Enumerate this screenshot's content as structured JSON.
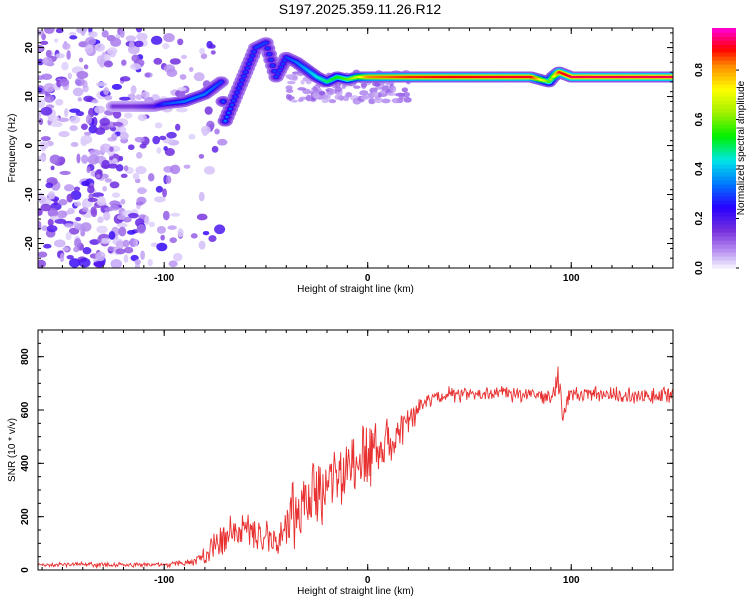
{
  "title": "S197.2025.359.11.26.R12",
  "chart_data": [
    {
      "type": "heatmap",
      "xlabel": "Height of straight line (km)",
      "ylabel": "Frequency (Hz)",
      "xlim": [
        -162,
        150
      ],
      "ylim": [
        -25,
        24
      ],
      "x_ticks": [
        -100,
        0,
        100
      ],
      "y_ticks": [
        20,
        10,
        0,
        -10,
        -20
      ],
      "colorbar": {
        "label": "Normalized spectral amplitude",
        "range": [
          0,
          0.97
        ],
        "ticks": [
          0.0,
          0.2,
          0.4,
          0.6,
          0.8
        ]
      },
      "dominant_frequency_track": {
        "x": [
          -125,
          -115,
          -105,
          -100,
          -90,
          -80,
          -72,
          -70,
          -65,
          -60,
          -55,
          -50,
          -45,
          -40,
          -35,
          -30,
          -25,
          -20,
          -15,
          -10,
          -5,
          0,
          20,
          40,
          60,
          80,
          89,
          91,
          94,
          100,
          120,
          150
        ],
        "y": [
          8,
          8,
          8,
          8.5,
          9,
          10.5,
          13,
          5,
          10,
          15,
          20,
          21,
          14,
          18,
          17,
          15.5,
          14,
          13,
          14,
          13.5,
          14,
          14,
          14,
          14,
          14,
          14,
          13,
          14,
          15,
          14,
          14,
          14
        ],
        "amplitude": [
          0.15,
          0.15,
          0.2,
          0.3,
          0.35,
          0.35,
          0.3,
          0.35,
          0.3,
          0.3,
          0.3,
          0.3,
          0.3,
          0.3,
          0.35,
          0.4,
          0.45,
          0.5,
          0.55,
          0.6,
          0.7,
          0.85,
          0.9,
          0.92,
          0.93,
          0.93,
          0.6,
          0.7,
          0.9,
          0.95,
          0.95,
          0.95
        ]
      }
    },
    {
      "type": "line",
      "xlabel": "Height of straight line (km)",
      "ylabel": "SNR (10 * v/v)",
      "xlim": [
        -162,
        150
      ],
      "ylim": [
        0,
        900
      ],
      "x_ticks": [
        -100,
        0,
        100
      ],
      "y_ticks": [
        0,
        200,
        400,
        600,
        800
      ],
      "series": [
        {
          "color": "#e83030",
          "x": [
            -162,
            -150,
            -140,
            -130,
            -120,
            -110,
            -100,
            -90,
            -85,
            -80,
            -75,
            -70,
            -65,
            -60,
            -55,
            -50,
            -45,
            -40,
            -35,
            -30,
            -25,
            -20,
            -15,
            -10,
            -5,
            0,
            5,
            10,
            15,
            20,
            25,
            30,
            40,
            50,
            60,
            70,
            80,
            90,
            94,
            96,
            98,
            100,
            110,
            120,
            130,
            140,
            150
          ],
          "y": [
            20,
            20,
            20,
            20,
            20,
            20,
            20,
            25,
            35,
            60,
            90,
            120,
            150,
            140,
            130,
            120,
            140,
            170,
            220,
            260,
            290,
            310,
            350,
            380,
            390,
            420,
            440,
            470,
            510,
            560,
            600,
            640,
            660,
            660,
            660,
            660,
            660,
            650,
            700,
            560,
            640,
            660,
            655,
            660,
            650,
            655,
            660
          ],
          "envelope": [
            10,
            15,
            15,
            15,
            15,
            15,
            15,
            20,
            30,
            60,
            90,
            110,
            120,
            110,
            100,
            100,
            160,
            200,
            240,
            200,
            200,
            180,
            180,
            200,
            220,
            220,
            200,
            150,
            120,
            80,
            70,
            60,
            50,
            50,
            50,
            50,
            50,
            50,
            200,
            120,
            80,
            50,
            50,
            50,
            50,
            50,
            50
          ]
        }
      ]
    }
  ]
}
